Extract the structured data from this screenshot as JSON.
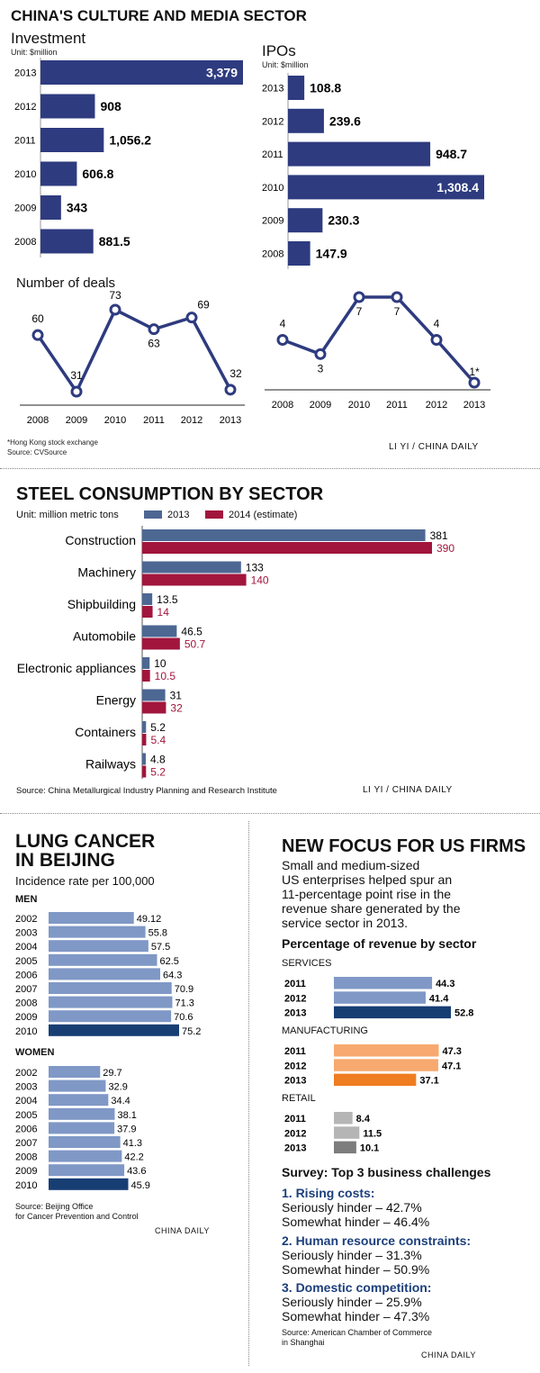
{
  "section1": {
    "title": "CHINA'S CULTURE AND MEDIA SECTOR",
    "investment_label": "Investment",
    "investment_unit": "Unit: $million",
    "ipos_label": "IPOs",
    "ipos_unit": "Unit: $million",
    "deals_label": "Number of deals",
    "footnote": "*Hong Kong stock exchange",
    "source": "Source: CVSource",
    "credit": "LI YI / CHINA DAILY",
    "colors": {
      "bar": "#2e3b7f",
      "line": "#2e3b7f"
    }
  },
  "section2": {
    "title": "STEEL CONSUMPTION BY SECTOR",
    "unit": "Unit: million metric tons",
    "source": "Source: China Metallurgical Industry Planning and Research Institute",
    "credit": "LI YI / CHINA DAILY",
    "colors": {
      "s2013": "#4d6793",
      "s2014": "#a2153d"
    }
  },
  "section3": {
    "title1": "LUNG CANCER",
    "title2": "IN BEIJING",
    "subtitle": "Incidence rate per 100,000",
    "men_label": "MEN",
    "women_label": "WOMEN",
    "source1": "Source: Beijing Office",
    "source2": "for Cancer Prevention and Control",
    "credit": "CHINA DAILY",
    "colors": {
      "bar": "#7f98c6",
      "highlight": "#173e73"
    }
  },
  "section4": {
    "title": "NEW FOCUS FOR US FIRMS",
    "intro": [
      "Small and medium-sized",
      "US enterprises helped spur an",
      "11-percentage point rise in the",
      "revenue share generated by the",
      "service sector in 2013."
    ],
    "chart_title": "Percentage of revenue by sector",
    "services_label": "SERVICES",
    "manufacturing_label": "MANUFACTURING",
    "retail_label": "RETAIL",
    "survey_title": "Survey: Top 3 business challenges",
    "challenges": [
      {
        "title": "1. Rising costs:",
        "line1": "Seriously hinder – 42.7%",
        "line2": "Somewhat hinder – 46.4%"
      },
      {
        "title": "2. Human resource constraints:",
        "line1": "Seriously hinder – 31.3%",
        "line2": "Somewhat hinder – 50.9%"
      },
      {
        "title": "3. Domestic competition:",
        "line1": "Seriously hinder – 25.9%",
        "line2": "Somewhat hinder – 47.3%"
      }
    ],
    "source1": "Source: American Chamber of Commerce",
    "source2": "in Shanghai",
    "credit": "CHINA DAILY",
    "colors": {
      "services": "#7f98c6",
      "services_hl": "#173e73",
      "manufacturing": "#f7a96f",
      "manufacturing_hl": "#ef7d21",
      "retail": "#b5b5b5",
      "retail_hl": "#7d7d7d"
    }
  },
  "chart_data": [
    {
      "id": "investment",
      "type": "bar",
      "categories": [
        "2013",
        "2012",
        "2011",
        "2010",
        "2009",
        "2008"
      ],
      "values": [
        3379,
        908,
        1056.2,
        606.8,
        343,
        881.5
      ],
      "labels": [
        "3,379",
        "908",
        "1,056.2",
        "606.8",
        "343",
        "881.5"
      ],
      "title": "Investment",
      "unit": "Unit: $million"
    },
    {
      "id": "ipos",
      "type": "bar",
      "categories": [
        "2013",
        "2012",
        "2011",
        "2010",
        "2009",
        "2008"
      ],
      "values": [
        108.8,
        239.6,
        948.7,
        1308.4,
        230.3,
        147.9
      ],
      "labels": [
        "108.8",
        "239.6",
        "948.7",
        "1,308.4",
        "230.3",
        "147.9"
      ],
      "title": "IPOs",
      "unit": "Unit: $million"
    },
    {
      "id": "deals_investment",
      "type": "line",
      "x": [
        "2008",
        "2009",
        "2010",
        "2011",
        "2012",
        "2013"
      ],
      "values": [
        60,
        31,
        73,
        63,
        69,
        32
      ],
      "title": "Number of deals"
    },
    {
      "id": "deals_ipos",
      "type": "line",
      "x": [
        "2008",
        "2009",
        "2010",
        "2011",
        "2012",
        "2013"
      ],
      "values": [
        4,
        3,
        7,
        7,
        4,
        1
      ],
      "labels": [
        "4",
        "3",
        "7",
        "7",
        "4",
        "1*"
      ]
    },
    {
      "id": "steel",
      "type": "bar",
      "categories": [
        "Construction",
        "Machinery",
        "Shipbuilding",
        "Automobile",
        "Electronic appliances",
        "Energy",
        "Containers",
        "Railways"
      ],
      "series": [
        {
          "name": "2013",
          "values": [
            381,
            133,
            13.5,
            46.5,
            10,
            31,
            5.2,
            4.8
          ]
        },
        {
          "name": "2014 (estimate)",
          "values": [
            390,
            140,
            14,
            50.7,
            10.5,
            32,
            5.4,
            5.2
          ]
        }
      ],
      "title": "STEEL CONSUMPTION BY SECTOR",
      "unit": "Unit: million metric tons"
    },
    {
      "id": "lung_men",
      "type": "bar",
      "categories": [
        "2002",
        "2003",
        "2004",
        "2005",
        "2006",
        "2007",
        "2008",
        "2009",
        "2010"
      ],
      "values": [
        49.12,
        55.8,
        57.5,
        62.5,
        64.3,
        70.9,
        71.3,
        70.6,
        75.2
      ],
      "title": "MEN"
    },
    {
      "id": "lung_women",
      "type": "bar",
      "categories": [
        "2002",
        "2003",
        "2004",
        "2005",
        "2006",
        "2007",
        "2008",
        "2009",
        "2010"
      ],
      "values": [
        29.7,
        32.9,
        34.4,
        38.1,
        37.9,
        41.3,
        42.2,
        43.6,
        45.9
      ],
      "title": "WOMEN"
    },
    {
      "id": "us_services",
      "type": "bar",
      "categories": [
        "2011",
        "2012",
        "2013"
      ],
      "values": [
        44.3,
        41.4,
        52.8
      ],
      "title": "SERVICES"
    },
    {
      "id": "us_manufacturing",
      "type": "bar",
      "categories": [
        "2011",
        "2012",
        "2013"
      ],
      "values": [
        47.3,
        47.1,
        37.1
      ],
      "title": "MANUFACTURING"
    },
    {
      "id": "us_retail",
      "type": "bar",
      "categories": [
        "2011",
        "2012",
        "2013"
      ],
      "values": [
        8.4,
        11.5,
        10.1
      ],
      "title": "RETAIL"
    }
  ]
}
